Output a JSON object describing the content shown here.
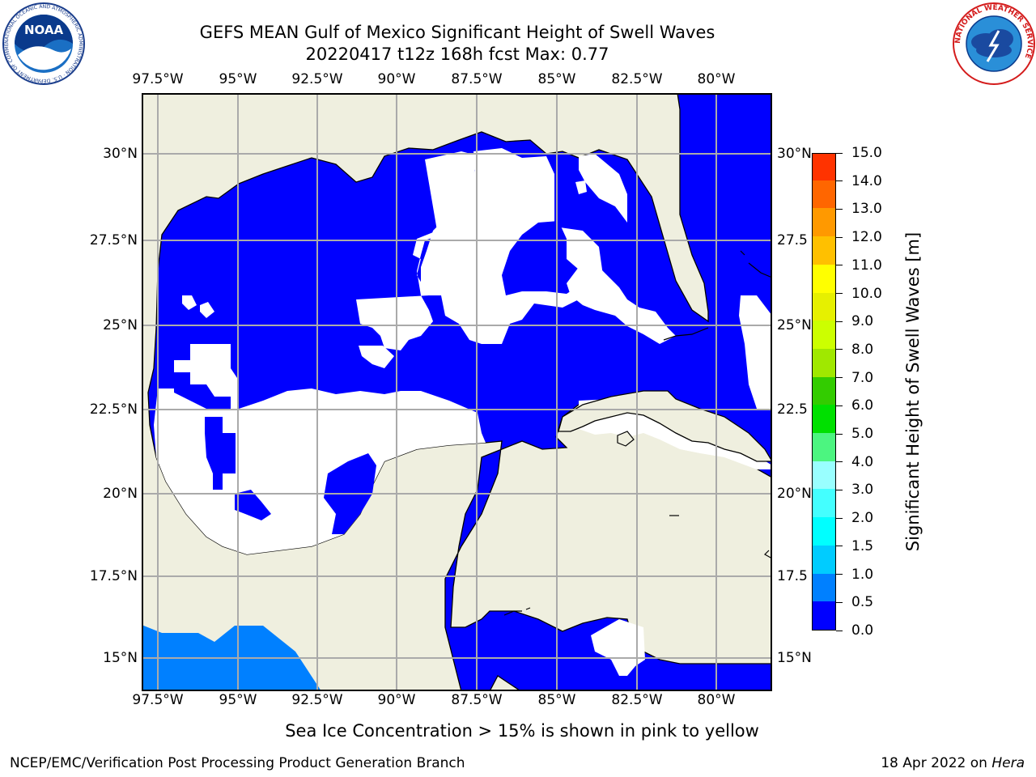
{
  "header": {
    "title_line1": "GEFS MEAN Gulf of Mexico Significant Height of Swell Waves",
    "title_line2": "20220417 t12z 168h fcst   Max: 0.77"
  },
  "logos": {
    "noaa": {
      "text": "NOAA",
      "ring_text": "NATIONAL OCEANIC AND ATMOSPHERIC ADMINISTRATION · U.S. DEPARTMENT OF COMMERCE"
    },
    "nws": {
      "ring_text": "NATIONAL WEATHER SERVICE"
    }
  },
  "axes": {
    "lon_labels": [
      "97.5°W",
      "95°W",
      "92.5°W",
      "90°W",
      "87.5°W",
      "85°W",
      "82.5°W",
      "80°W"
    ],
    "lat_labels_left": [
      "30°N",
      "27.5°N",
      "25°N",
      "22.5°N",
      "20°N",
      "17.5°N",
      "15°N"
    ],
    "lat_labels_right": [
      "30°N",
      "27.5",
      "25°N",
      "22.5",
      "20°N",
      "17.5",
      "15°N"
    ]
  },
  "colorbar": {
    "label": "Significant Height of Swell Waves [m]",
    "ticks": [
      "0.0",
      "0.5",
      "1.0",
      "1.5",
      "2.0",
      "3.0",
      "4.0",
      "5.0",
      "6.0",
      "7.0",
      "8.0",
      "9.0",
      "10.0",
      "11.0",
      "12.0",
      "13.0",
      "14.0",
      "15.0"
    ],
    "colors": [
      "#0000ff",
      "#0080ff",
      "#00ccff",
      "#00ffff",
      "#44ffff",
      "#99ffff",
      "#4cf580",
      "#00e000",
      "#33cc00",
      "#a0e800",
      "#ccff00",
      "#e6f000",
      "#ffff00",
      "#ffc000",
      "#ff9900",
      "#ff6600",
      "#ff3300",
      "#ff0000"
    ]
  },
  "colors": {
    "land": "#efefdf",
    "water_low": "#0000ff",
    "water_05": "#0080ff",
    "grid": "#aaaaaa"
  },
  "footnote": "Sea Ice Concentration > 15% is shown in pink to yellow",
  "credits": {
    "left": "NCEP/EMC/Verification Post Processing Product Generation Branch",
    "right_prefix": "18 Apr 2022 on ",
    "right_host": "Hera"
  }
}
